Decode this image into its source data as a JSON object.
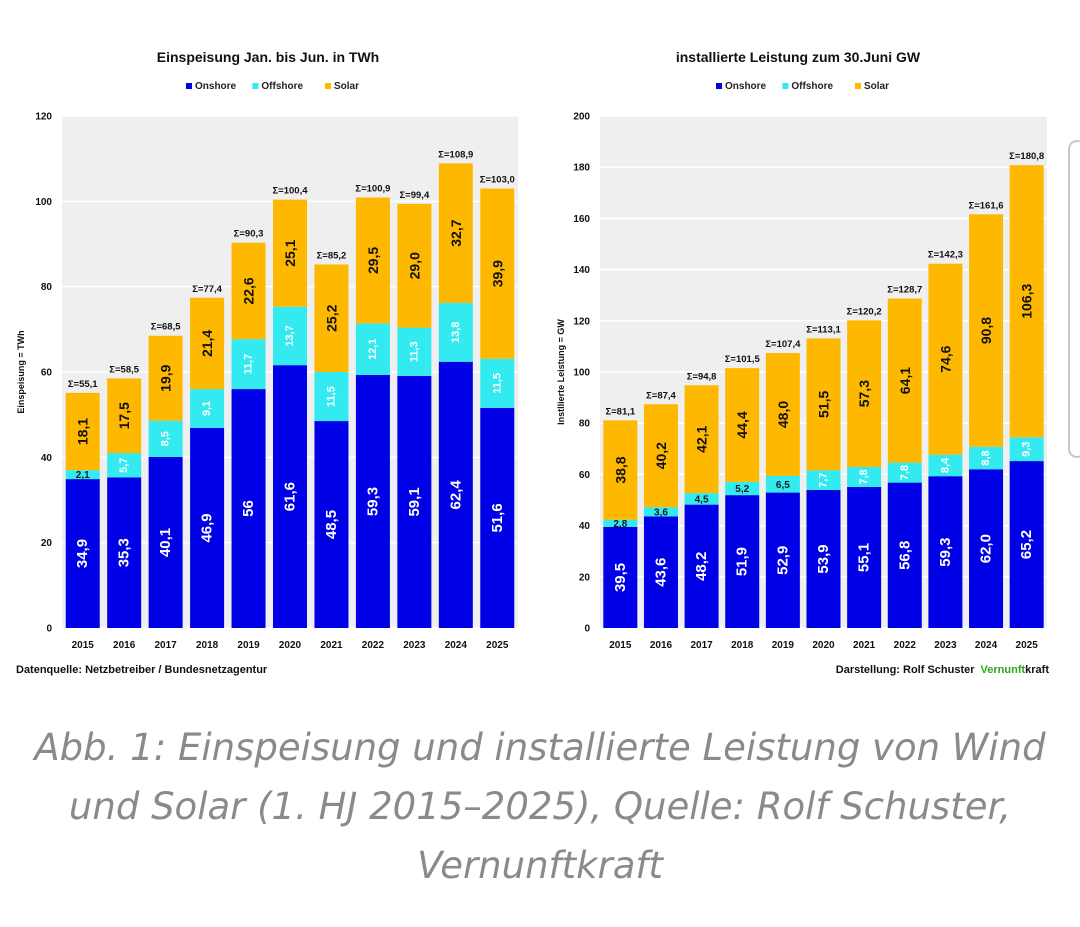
{
  "colors": {
    "onshore": "#0000e6",
    "offshore": "#33eaf0",
    "solar": "#ffb800",
    "plot_bg": "#efefef",
    "grid": "#ffffff",
    "vernunft_green": "#2fa51e"
  },
  "legend": {
    "onshore": "Onshore",
    "offshore": "Offshore",
    "solar": "Solar"
  },
  "chart_data": [
    {
      "type": "bar",
      "stacked": true,
      "title": "Einspeisung Jan. bis Jun. in TWh",
      "ylabel": "Einspeisung = TWh",
      "xlabel": "",
      "ylim": [
        0,
        120
      ],
      "yticks": [
        0,
        20,
        40,
        60,
        80,
        100,
        120
      ],
      "grid": true,
      "legend_position": "top-center",
      "categories": [
        "2015",
        "2016",
        "2017",
        "2018",
        "2019",
        "2020",
        "2021",
        "2022",
        "2023",
        "2024",
        "2025"
      ],
      "series": [
        {
          "name": "Onshore",
          "values": [
            34.9,
            35.3,
            40.1,
            46.9,
            56,
            61.6,
            48.5,
            59.3,
            59.1,
            62.4,
            51.6
          ],
          "labels": [
            "34,9",
            "35,3",
            "40,1",
            "46,9",
            "56",
            "61,6",
            "48,5",
            "59,3",
            "59,1",
            "62,4",
            "51,6"
          ]
        },
        {
          "name": "Offshore",
          "values": [
            2.1,
            5.7,
            8.5,
            9.1,
            11.7,
            13.7,
            11.5,
            12.1,
            11.3,
            13.8,
            11.5
          ],
          "labels": [
            "2,1",
            "5,7",
            "8,5",
            "9,1",
            "11,7",
            "13,7",
            "11,5",
            "12,1",
            "11,3",
            "13,8",
            "11,5"
          ]
        },
        {
          "name": "Solar",
          "values": [
            18.1,
            17.5,
            19.9,
            21.4,
            22.6,
            25.1,
            25.2,
            29.5,
            29.0,
            32.7,
            39.9
          ],
          "labels": [
            "18,1",
            "17,5",
            "19,9",
            "21,4",
            "22,6",
            "25,1",
            "25,2",
            "29,5",
            "29,0",
            "32,7",
            "39,9"
          ]
        }
      ],
      "totals": [
        55.1,
        58.5,
        68.5,
        77.4,
        90.3,
        100.4,
        85.2,
        100.9,
        99.4,
        108.9,
        103.0
      ],
      "total_labels": [
        "Σ=55,1",
        "Σ=58,5",
        "Σ=68,5",
        "Σ=77,4",
        "Σ=90,3",
        "Σ=100,4",
        "Σ=85,2",
        "Σ=100,9",
        "Σ=99,4",
        "Σ=108,9",
        "Σ=103,0"
      ]
    },
    {
      "type": "bar",
      "stacked": true,
      "title": "installierte Leistung zum 30.Juni GW",
      "ylabel": "Instllierte Leistung = GW",
      "xlabel": "",
      "ylim": [
        0,
        200
      ],
      "yticks": [
        0,
        20,
        40,
        60,
        80,
        100,
        120,
        140,
        160,
        180,
        200
      ],
      "grid": true,
      "legend_position": "top-center",
      "categories": [
        "2015",
        "2016",
        "2017",
        "2018",
        "2019",
        "2020",
        "2021",
        "2022",
        "2023",
        "2024",
        "2025"
      ],
      "series": [
        {
          "name": "Onshore",
          "values": [
            39.5,
            43.6,
            48.2,
            51.9,
            52.9,
            53.9,
            55.1,
            56.8,
            59.3,
            62.0,
            65.2
          ],
          "labels": [
            "39,5",
            "43,6",
            "48,2",
            "51,9",
            "52,9",
            "53,9",
            "55,1",
            "56,8",
            "59,3",
            "62,0",
            "65,2"
          ]
        },
        {
          "name": "Offshore",
          "values": [
            2.8,
            3.6,
            4.5,
            5.2,
            6.5,
            7.7,
            7.8,
            7.8,
            8.4,
            8.8,
            9.3
          ],
          "labels": [
            "2,8",
            "3,6",
            "4,5",
            "5,2",
            "6,5",
            "7,7",
            "7,8",
            "7,8",
            "8,4",
            "8,8",
            "9,3"
          ]
        },
        {
          "name": "Solar",
          "values": [
            38.8,
            40.2,
            42.1,
            44.4,
            48.0,
            51.5,
            57.3,
            64.1,
            74.6,
            90.8,
            106.3
          ],
          "labels": [
            "38,8",
            "40,2",
            "42,1",
            "44,4",
            "48,0",
            "51,5",
            "57,3",
            "64,1",
            "74,6",
            "90,8",
            "106,3"
          ]
        }
      ],
      "totals": [
        81.1,
        87.4,
        94.8,
        101.5,
        107.4,
        113.1,
        120.2,
        128.7,
        142.3,
        161.6,
        180.8
      ],
      "total_labels": [
        "Σ=81,1",
        "Σ=87,4",
        "Σ=94,8",
        "Σ=101,5",
        "Σ=107,4",
        "Σ=113,1",
        "Σ=120,2",
        "Σ=128,7",
        "Σ=142,3",
        "Σ=161,6",
        "Σ=180,8"
      ]
    }
  ],
  "footer": {
    "source": "Datenquelle: Netzbetreiber / Bundesnetzagentur",
    "credit_prefix": "Darstellung: Rolf Schuster",
    "brand_part1": "Vernunft",
    "brand_part2": "kraft"
  },
  "caption": "Abb. 1: Einspeisung und installierte Leistung von Wind und Solar (1. HJ 2015–2025), Quelle: Rolf Schuster, Vernunftkraft"
}
